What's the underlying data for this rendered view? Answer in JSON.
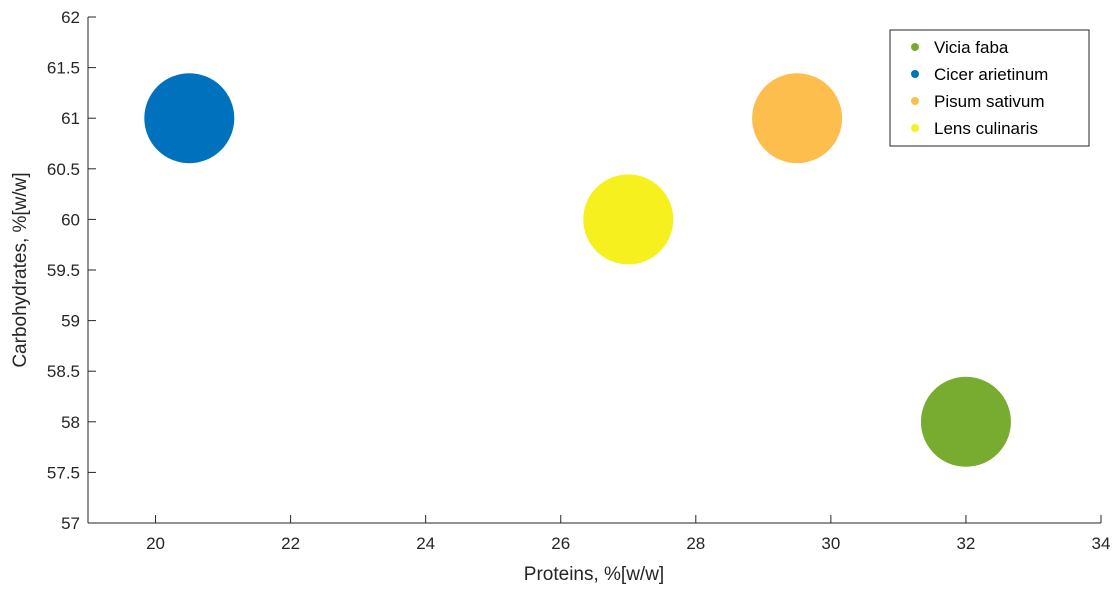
{
  "chart_data": {
    "type": "scatter",
    "title": "",
    "xlabel": "Proteins, %[w/w]",
    "ylabel": "Carbohydrates, %[w/w]",
    "xlim": [
      19,
      34
    ],
    "ylim": [
      57,
      62
    ],
    "xticks": [
      "20",
      "22",
      "24",
      "26",
      "28",
      "30",
      "32",
      "34"
    ],
    "yticks": [
      "57",
      "57.5",
      "58",
      "58.5",
      "59",
      "59.5",
      "60",
      "60.5",
      "61",
      "61.5",
      "62"
    ],
    "grid": false,
    "legend_position": "top-right",
    "series": [
      {
        "name": "Vicia faba",
        "x": 32,
        "y": 58,
        "color": "#77ac30"
      },
      {
        "name": "Cicer arietinum",
        "x": 20.5,
        "y": 61,
        "color": "#0072bd"
      },
      {
        "name": "Pisum sativum",
        "x": 29.5,
        "y": 61,
        "color": "#fdbe4e"
      },
      {
        "name": "Lens culinaris",
        "x": 27,
        "y": 60,
        "color": "#f5f01e"
      }
    ]
  }
}
